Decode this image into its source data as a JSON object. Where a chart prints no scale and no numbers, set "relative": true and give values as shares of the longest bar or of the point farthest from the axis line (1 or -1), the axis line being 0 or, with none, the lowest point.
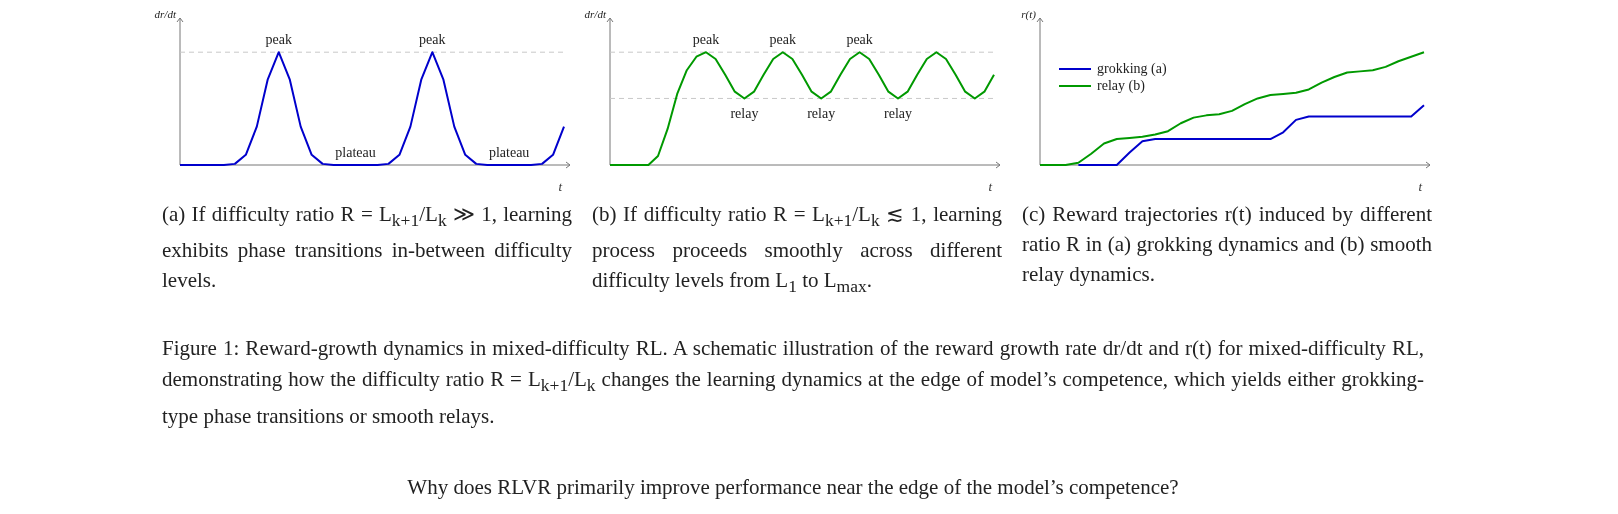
{
  "chart_data": [
    {
      "type": "line",
      "title": "(a) If difficulty ratio R = L$_{k+1}$/L$_{k}$ ≫ 1, learning exhibits phase transitions in-between difficulty levels.",
      "xlabel": "t",
      "ylabel": "dr/dt",
      "relative": true,
      "tick_labels": false,
      "marker": "none",
      "categories": [
        null,
        null,
        null,
        null,
        null,
        null,
        null,
        null,
        null,
        null,
        null,
        null,
        null,
        null,
        null,
        null,
        null,
        null,
        null,
        null,
        null,
        null,
        null,
        null,
        null,
        null,
        null,
        null,
        null,
        null,
        null,
        null,
        null,
        null,
        null,
        null
      ],
      "series": [
        {
          "color": "#0000cc",
          "values": [
            0,
            0,
            0,
            0,
            0,
            0.01,
            0.09,
            0.34,
            0.76,
            1,
            0.76,
            0.34,
            0.09,
            0.01,
            0,
            0,
            0,
            0,
            0,
            0.01,
            0.09,
            0.34,
            0.76,
            1,
            0.76,
            0.34,
            0.09,
            0.01,
            0,
            0,
            0,
            0,
            0,
            0.01,
            0.09,
            0.34
          ]
        }
      ],
      "ref_lines": [
        {
          "axis": "y",
          "value": 1,
          "color": "#c8c8c8",
          "line_style": "dashed"
        }
      ],
      "annotations": [
        {
          "text": "peak",
          "y": 1
        },
        {
          "text": "peak",
          "y": 1
        },
        {
          "text": "plateau",
          "y": 0
        },
        {
          "text": "plateau",
          "y": 0
        },
        "Figure 1: Reward-growth dynamics in mixed-difficulty RL. A schematic illustration of the reward growth rate dr/dt and r(t) for mixed-difficulty RL, demonstrating how the difficulty ratio R = L$_{k+1}$/L$_{k}$ changes the learning dynamics at the edge of model’s competence, which yields either grokking-type phase transitions or smooth relays.",
        "Why does RLVR primarily improve performance near the edge of the model’s competence?"
      ]
    },
    {
      "type": "line",
      "title": "(b) If difficulty ratio R = L$_{k+1}$/L$_{k}$ ≲ 1, learning process proceeds smoothly across different difficulty levels from L$_{1}$ to L$_{max}$.",
      "xlabel": "t",
      "ylabel": "dr/dt",
      "relative": true,
      "tick_labels": false,
      "marker": "none",
      "categories": [
        null,
        null,
        null,
        null,
        null,
        null,
        null,
        null,
        null,
        null,
        null,
        null,
        null,
        null,
        null,
        null,
        null,
        null,
        null,
        null,
        null,
        null,
        null,
        null,
        null,
        null,
        null,
        null,
        null,
        null,
        null,
        null,
        null,
        null,
        null,
        null,
        null,
        null,
        null,
        null,
        null
      ],
      "series": [
        {
          "color": "#009900",
          "values": [
            0,
            0,
            0,
            0,
            0,
            0.08,
            0.32,
            0.63,
            0.84,
            0.96,
            1,
            0.94,
            0.8,
            0.65,
            0.59,
            0.65,
            0.8,
            0.94,
            1,
            0.94,
            0.8,
            0.65,
            0.59,
            0.65,
            0.8,
            0.94,
            1,
            0.94,
            0.8,
            0.65,
            0.59,
            0.65,
            0.8,
            0.94,
            1,
            0.94,
            0.8,
            0.65,
            0.59,
            0.65,
            0.8
          ]
        }
      ],
      "ref_lines": [
        {
          "axis": "y",
          "value": 1,
          "color": "#c8c8c8",
          "line_style": "dashed"
        },
        {
          "axis": "y",
          "value": 0.59,
          "color": "#c8c8c8",
          "line_style": "dashed"
        }
      ],
      "annotations": [
        {
          "text": "peak",
          "y": 1
        },
        {
          "text": "peak",
          "y": 1
        },
        {
          "text": "peak",
          "y": 1
        },
        {
          "text": "relay",
          "y": 0.59
        },
        {
          "text": "relay",
          "y": 0.59
        },
        {
          "text": "relay",
          "y": 0.59
        }
      ]
    },
    {
      "type": "line",
      "title": "(c) Reward trajectories r(t) induced by different ratio R in (a) grokking dynamics and (b) smooth relay dynamics.",
      "xlabel": "t",
      "ylabel": "r(t)",
      "relative": true,
      "tick_labels": false,
      "marker": "none",
      "legend": "top left",
      "categories": [
        null,
        null,
        null,
        null,
        null,
        null,
        null,
        null,
        null,
        null,
        null,
        null,
        null,
        null,
        null,
        null,
        null,
        null,
        null,
        null,
        null,
        null,
        null,
        null,
        null,
        null,
        null,
        null,
        null,
        null,
        null
      ],
      "series": [
        {
          "name": "grokking (a)",
          "color": "#0000cc",
          "values": [
            null,
            null,
            null,
            0,
            0,
            0,
            0,
            0.11,
            0.21,
            0.23,
            0.23,
            0.23,
            0.23,
            0.23,
            0.23,
            0.23,
            0.23,
            0.23,
            0.23,
            0.29,
            0.4,
            0.43,
            0.43,
            0.43,
            0.43,
            0.43,
            0.43,
            0.43,
            0.43,
            0.43,
            0.53
          ]
        },
        {
          "name": "relay (b)",
          "color": "#009900",
          "values": [
            0,
            0,
            0,
            0.02,
            0.1,
            0.19,
            0.23,
            0.24,
            0.25,
            0.27,
            0.3,
            0.37,
            0.42,
            0.44,
            0.45,
            0.48,
            0.54,
            0.59,
            0.62,
            0.63,
            0.64,
            0.67,
            0.73,
            0.78,
            0.82,
            0.83,
            0.84,
            0.87,
            0.92,
            0.96,
            1
          ]
        }
      ]
    }
  ]
}
